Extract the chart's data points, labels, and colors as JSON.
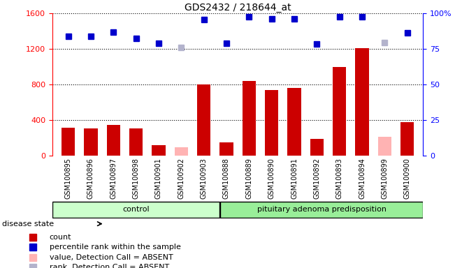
{
  "title": "GDS2432 / 218644_at",
  "samples": [
    "GSM100895",
    "GSM100896",
    "GSM100897",
    "GSM100898",
    "GSM100901",
    "GSM100902",
    "GSM100903",
    "GSM100888",
    "GSM100889",
    "GSM100890",
    "GSM100891",
    "GSM100892",
    "GSM100893",
    "GSM100894",
    "GSM100899",
    "GSM100900"
  ],
  "count_values": [
    310,
    305,
    345,
    305,
    115,
    null,
    800,
    145,
    840,
    740,
    760,
    185,
    1000,
    1210,
    null,
    375
  ],
  "count_absent": [
    null,
    null,
    null,
    null,
    null,
    95,
    null,
    null,
    null,
    null,
    null,
    null,
    null,
    null,
    210,
    null
  ],
  "rank_values": [
    1340,
    1340,
    1390,
    1320,
    1260,
    null,
    1530,
    1265,
    1560,
    1540,
    1540,
    1255,
    1560,
    1560,
    null,
    1380
  ],
  "rank_absent": [
    null,
    null,
    null,
    null,
    null,
    1215,
    null,
    null,
    null,
    null,
    null,
    null,
    null,
    null,
    1270,
    null
  ],
  "ylim_left": [
    0,
    1600
  ],
  "ylim_right": [
    0,
    100
  ],
  "yticks_left": [
    0,
    400,
    800,
    1200,
    1600
  ],
  "yticks_right": [
    0,
    25,
    50,
    75,
    100
  ],
  "group_labels": [
    "control",
    "pituitary adenoma predisposition"
  ],
  "control_count": 7,
  "disease_label": "disease state",
  "bar_color": "#cc0000",
  "bar_absent_color": "#ffb3b3",
  "rank_color": "#0000cc",
  "rank_absent_color": "#b3b3cc",
  "group_bg_control": "#ccffcc",
  "group_bg_disease": "#99ee99",
  "xtick_bg": "#d8d8d8",
  "legend_items": [
    {
      "label": "count",
      "color": "#cc0000"
    },
    {
      "label": "percentile rank within the sample",
      "color": "#0000cc"
    },
    {
      "label": "value, Detection Call = ABSENT",
      "color": "#ffb3b3"
    },
    {
      "label": "rank, Detection Call = ABSENT",
      "color": "#b3b3cc"
    }
  ]
}
